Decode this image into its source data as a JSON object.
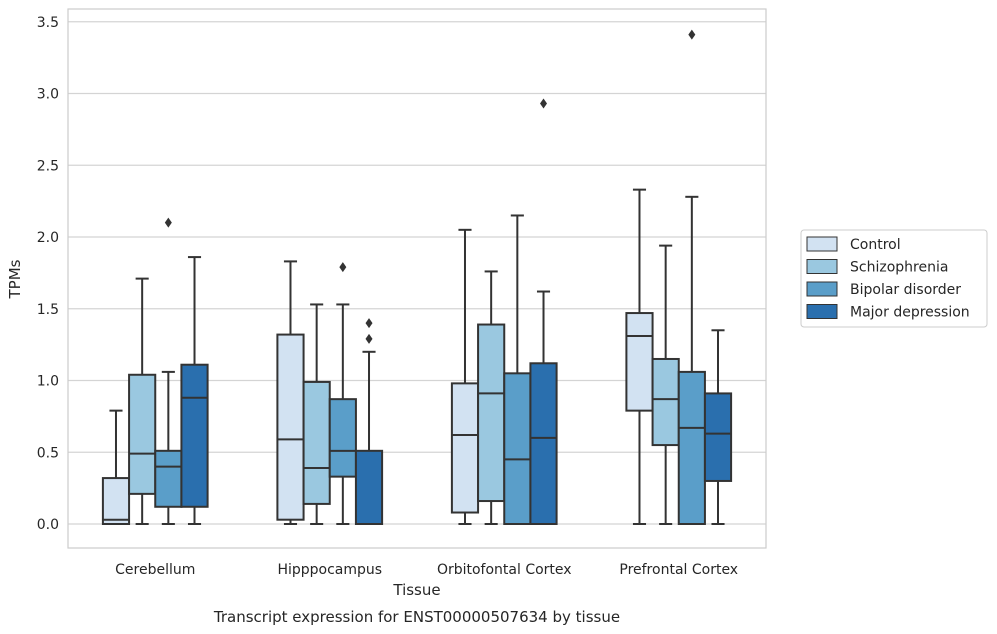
{
  "chart_data": {
    "type": "box",
    "xlabel": "Tissue",
    "ylabel": "TPMs",
    "caption": "Transcript expression for ENST00000507634 by tissue",
    "ylim": [
      -0.17,
      3.6
    ],
    "yticks": [
      "0.0",
      "0.5",
      "1.0",
      "1.5",
      "2.0",
      "2.5",
      "3.0",
      "3.5"
    ],
    "grid": "horizontal",
    "legend_position": "right",
    "categories": [
      "Cerebellum",
      "Hipppocampus",
      "Orbitofontal Cortex",
      "Prefrontal Cortex"
    ],
    "series": [
      {
        "name": "Control",
        "color": "#d2e2f2",
        "boxes": [
          {
            "whisker_low": 0.0,
            "q1": 0.0,
            "median": 0.03,
            "q3": 0.32,
            "whisker_high": 0.79,
            "outliers": []
          },
          {
            "whisker_low": 0.0,
            "q1": 0.03,
            "median": 0.59,
            "q3": 1.32,
            "whisker_high": 1.83,
            "outliers": []
          },
          {
            "whisker_low": 0.0,
            "q1": 0.08,
            "median": 0.62,
            "q3": 0.98,
            "whisker_high": 2.05,
            "outliers": []
          },
          {
            "whisker_low": 0.0,
            "q1": 0.79,
            "median": 1.31,
            "q3": 1.47,
            "whisker_high": 2.33,
            "outliers": []
          }
        ]
      },
      {
        "name": "Schizophrenia",
        "color": "#9ac8e0",
        "boxes": [
          {
            "whisker_low": 0.0,
            "q1": 0.21,
            "median": 0.49,
            "q3": 1.04,
            "whisker_high": 1.71,
            "outliers": []
          },
          {
            "whisker_low": 0.0,
            "q1": 0.14,
            "median": 0.39,
            "q3": 0.99,
            "whisker_high": 1.53,
            "outliers": []
          },
          {
            "whisker_low": 0.0,
            "q1": 0.16,
            "median": 0.91,
            "q3": 1.39,
            "whisker_high": 1.76,
            "outliers": []
          },
          {
            "whisker_low": 0.0,
            "q1": 0.55,
            "median": 0.87,
            "q3": 1.15,
            "whisker_high": 1.94,
            "outliers": []
          }
        ]
      },
      {
        "name": "Bipolar disorder",
        "color": "#5a9ec9",
        "boxes": [
          {
            "whisker_low": 0.0,
            "q1": 0.12,
            "median": 0.4,
            "q3": 0.51,
            "whisker_high": 1.06,
            "outliers": [
              2.1
            ]
          },
          {
            "whisker_low": 0.0,
            "q1": 0.33,
            "median": 0.51,
            "q3": 0.87,
            "whisker_high": 1.53,
            "outliers": [
              1.79
            ]
          },
          {
            "whisker_low": 0.0,
            "q1": 0.0,
            "median": 0.45,
            "q3": 1.05,
            "whisker_high": 2.15,
            "outliers": []
          },
          {
            "whisker_low": 0.0,
            "q1": 0.0,
            "median": 0.67,
            "q3": 1.06,
            "whisker_high": 2.28,
            "outliers": [
              3.41
            ]
          }
        ]
      },
      {
        "name": "Major depression",
        "color": "#2a6fae",
        "boxes": [
          {
            "whisker_low": 0.0,
            "q1": 0.12,
            "median": 0.88,
            "q3": 1.11,
            "whisker_high": 1.86,
            "outliers": []
          },
          {
            "whisker_low": 0.0,
            "q1": 0.0,
            "median": 0.0,
            "q3": 0.51,
            "whisker_high": 1.2,
            "outliers": [
              1.29,
              1.4
            ]
          },
          {
            "whisker_low": 0.0,
            "q1": 0.0,
            "median": 0.6,
            "q3": 1.12,
            "whisker_high": 1.62,
            "outliers": [
              2.93
            ]
          },
          {
            "whisker_low": 0.0,
            "q1": 0.3,
            "median": 0.63,
            "q3": 0.91,
            "whisker_high": 1.35,
            "outliers": []
          }
        ]
      }
    ]
  }
}
